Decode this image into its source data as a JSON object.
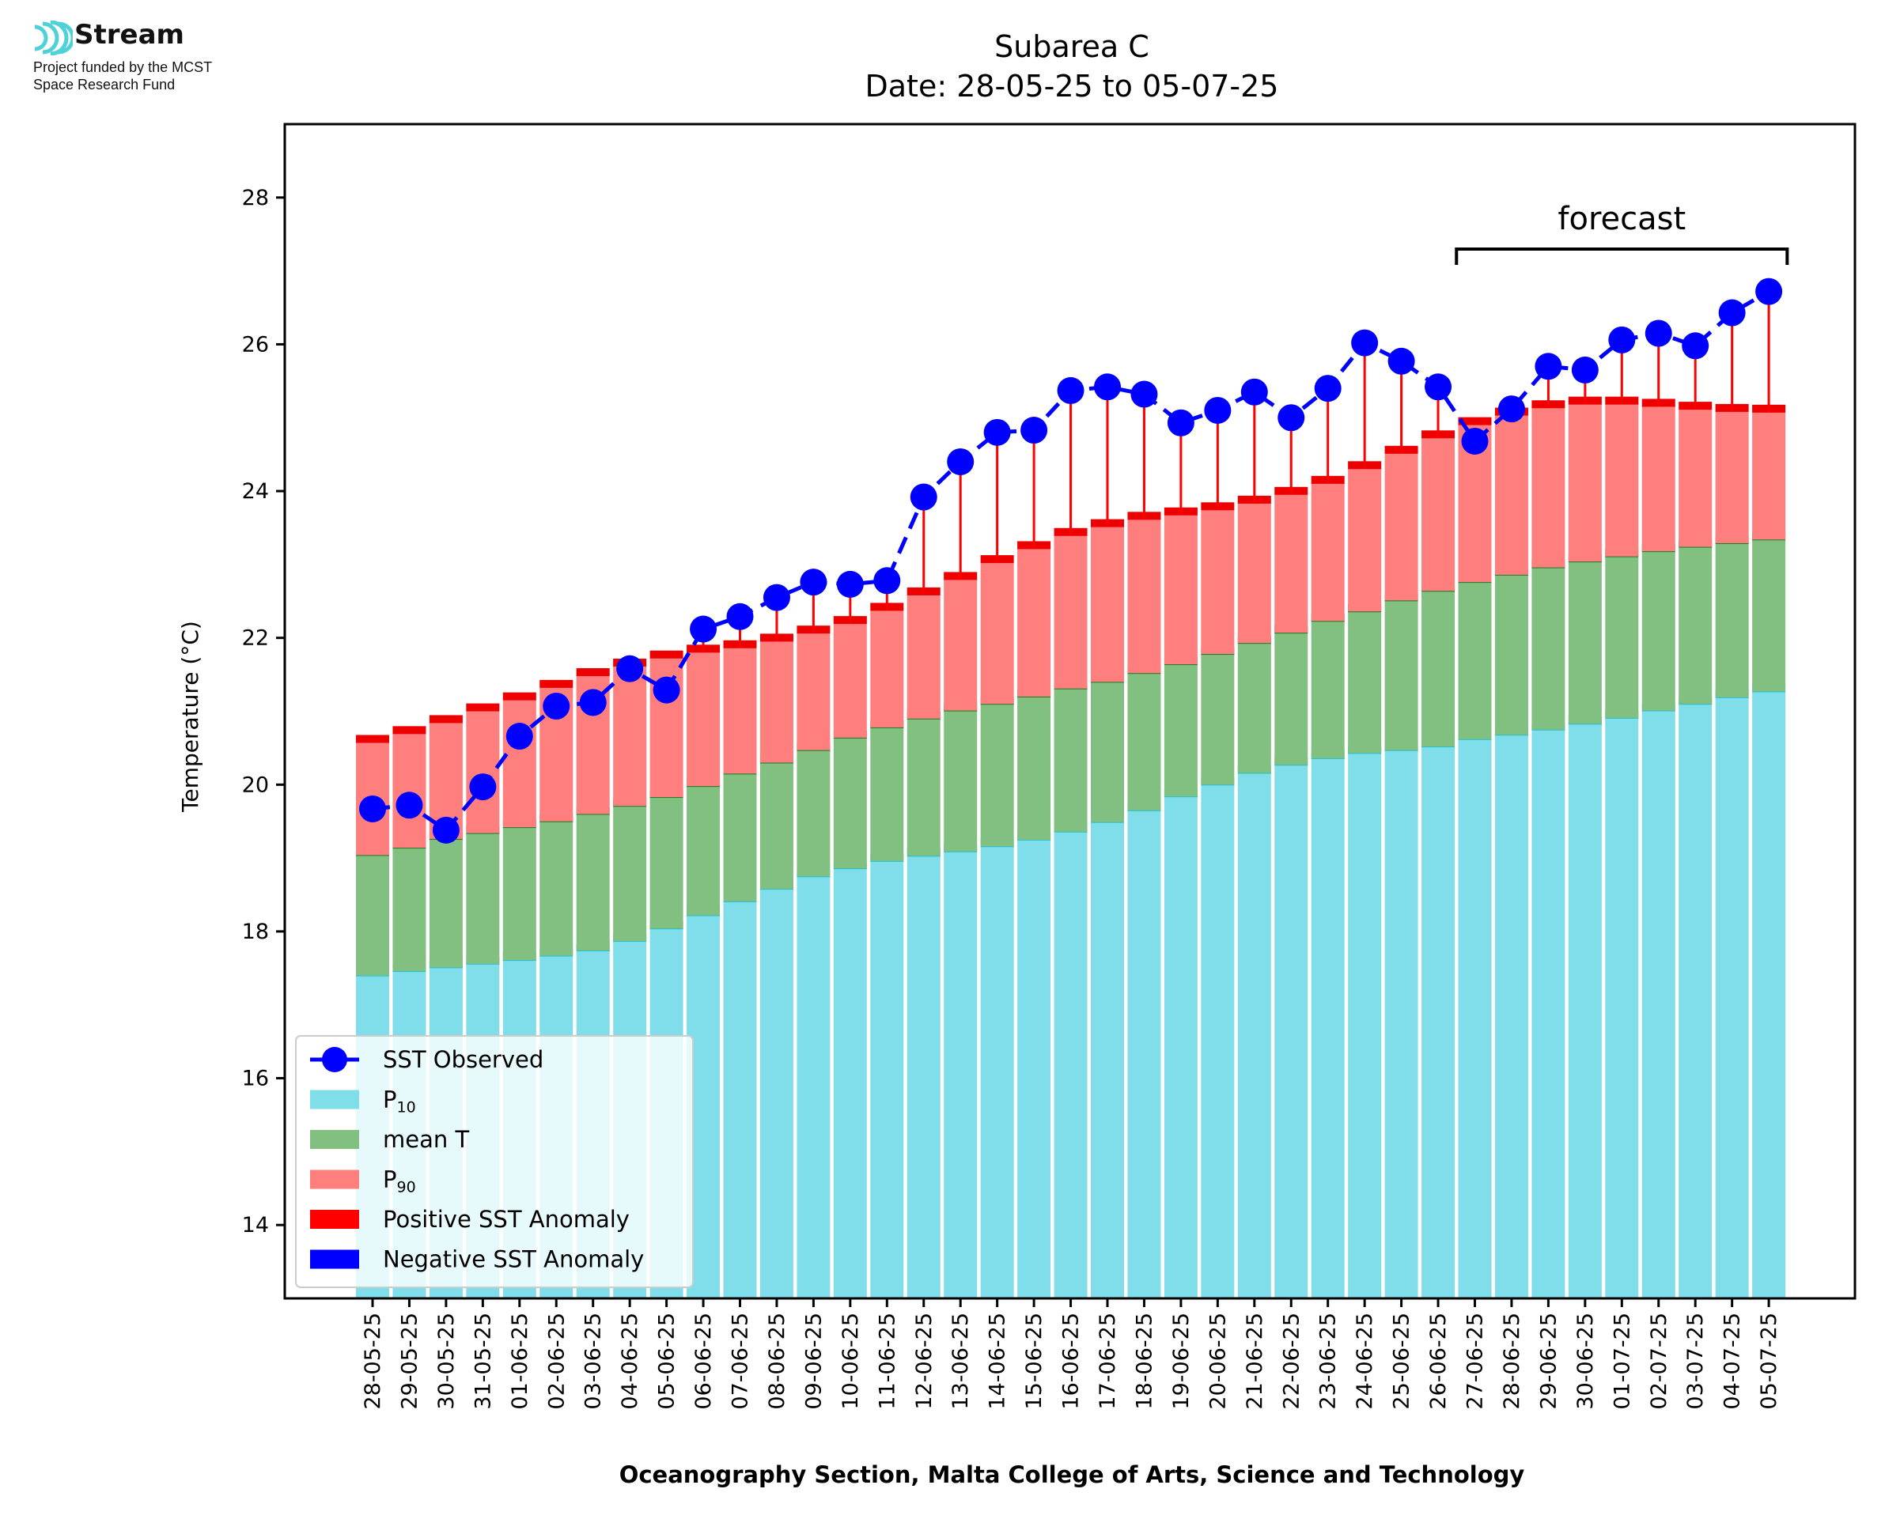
{
  "logo": {
    "name": "Stream",
    "line1": "Project funded by the MCST",
    "line2": "Space Research Fund"
  },
  "chart_data": {
    "type": "bar",
    "title": "Subarea C",
    "subtitle": "Date: 28-05-25 to 05-07-25",
    "xlabel": "Oceanography Section, Malta College of Arts, Science and Technology",
    "ylabel": "Temperature (°C)",
    "ylim": [
      13,
      29
    ],
    "yticks": [
      14,
      16,
      18,
      20,
      22,
      24,
      26,
      28
    ],
    "grid": false,
    "legend_position": "lower-left",
    "annotation": "forecast",
    "forecast_range": [
      "27-06-25",
      "05-07-25"
    ],
    "categories": [
      "28-05-25",
      "29-05-25",
      "30-05-25",
      "31-05-25",
      "01-06-25",
      "02-06-25",
      "03-06-25",
      "04-06-25",
      "05-06-25",
      "06-06-25",
      "07-06-25",
      "08-06-25",
      "09-06-25",
      "10-06-25",
      "11-06-25",
      "12-06-25",
      "13-06-25",
      "14-06-25",
      "15-06-25",
      "16-06-25",
      "17-06-25",
      "18-06-25",
      "19-06-25",
      "20-06-25",
      "21-06-25",
      "22-06-25",
      "23-06-25",
      "24-06-25",
      "25-06-25",
      "26-06-25",
      "27-06-25",
      "28-06-25",
      "29-06-25",
      "30-06-25",
      "01-07-25",
      "02-07-25",
      "03-07-25",
      "04-07-25",
      "05-07-25"
    ],
    "series": [
      {
        "name": "SST Observed",
        "kind": "line",
        "color": "#0000ff",
        "values": [
          19.67,
          19.72,
          19.38,
          19.97,
          20.66,
          21.07,
          21.12,
          21.58,
          21.29,
          22.12,
          22.29,
          22.55,
          22.76,
          22.73,
          22.78,
          23.92,
          24.4,
          24.8,
          24.83,
          25.37,
          25.42,
          25.32,
          24.93,
          25.1,
          25.35,
          25.0,
          25.4,
          26.02,
          25.77,
          25.42,
          24.68,
          25.12,
          25.7,
          25.65,
          26.06,
          26.15,
          25.98,
          26.43,
          26.72
        ]
      },
      {
        "name": "P₁₀",
        "label_base": "P",
        "label_sub": "10",
        "kind": "bar",
        "color": "#80deea",
        "values": [
          17.4,
          17.46,
          17.51,
          17.56,
          17.61,
          17.67,
          17.74,
          17.87,
          18.04,
          18.22,
          18.41,
          18.58,
          18.75,
          18.86,
          18.96,
          19.03,
          19.09,
          19.16,
          19.25,
          19.36,
          19.49,
          19.65,
          19.84,
          20.0,
          20.16,
          20.27,
          20.36,
          20.43,
          20.47,
          20.52,
          20.62,
          20.68,
          20.75,
          20.83,
          20.91,
          21.01,
          21.1,
          21.19,
          21.27
        ]
      },
      {
        "name": "mean T",
        "kind": "bar",
        "color": "#81c081",
        "values": [
          19.04,
          19.14,
          19.26,
          19.34,
          19.42,
          19.5,
          19.6,
          19.71,
          19.83,
          19.98,
          20.15,
          20.3,
          20.47,
          20.64,
          20.78,
          20.9,
          21.01,
          21.1,
          21.2,
          21.31,
          21.4,
          21.52,
          21.64,
          21.78,
          21.93,
          22.07,
          22.23,
          22.36,
          22.51,
          22.64,
          22.76,
          22.86,
          22.96,
          23.04,
          23.11,
          23.18,
          23.24,
          23.29,
          23.34
        ]
      },
      {
        "name": "P₉₀",
        "label_base": "P",
        "label_sub": "90",
        "kind": "bar",
        "color": "#ff7f7f",
        "values": [
          20.58,
          20.7,
          20.85,
          21.01,
          21.16,
          21.33,
          21.49,
          21.62,
          21.73,
          21.81,
          21.87,
          21.96,
          22.07,
          22.2,
          22.38,
          22.59,
          22.8,
          23.03,
          23.22,
          23.4,
          23.52,
          23.62,
          23.68,
          23.75,
          23.84,
          23.96,
          24.11,
          24.31,
          24.52,
          24.73,
          24.91,
          25.04,
          25.14,
          25.19,
          25.19,
          25.16,
          25.12,
          25.09,
          25.08
        ]
      },
      {
        "name": "Positive SST Anomaly",
        "kind": "anomaly",
        "color": "#ff0000"
      },
      {
        "name": "Negative SST Anomaly",
        "kind": "anomaly",
        "color": "#0000ff"
      }
    ]
  }
}
